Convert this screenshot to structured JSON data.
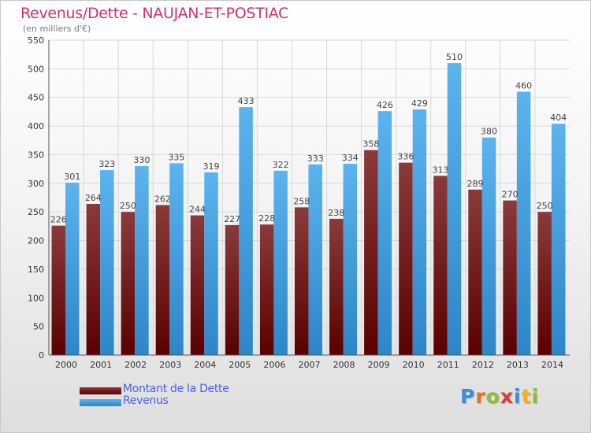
{
  "header": {
    "title": "Revenus/Dette - NAUJAN-ET-POSTIAC",
    "subtitle": "(en milliers d'€)"
  },
  "legend": {
    "items": [
      {
        "label": "Montant de la Dette",
        "color": "#6e1a1a"
      },
      {
        "label": "Revenus",
        "color": "#3f9ee0"
      }
    ]
  },
  "logo": {
    "text": "Proxiti"
  },
  "colors": {
    "dette_top": "#8a3a3a",
    "dette_bottom": "#5a0000",
    "revenus_top": "#5bb4ee",
    "revenus_bottom": "#2c86c8",
    "grid": "#d8d8d8",
    "axis_text": "#333333",
    "label_text": "#444444"
  },
  "chart_data": {
    "type": "bar",
    "title": "Revenus/Dette - NAUJAN-ET-POSTIAC",
    "subtitle": "(en milliers d'€)",
    "categories": [
      "2000",
      "2001",
      "2002",
      "2003",
      "2004",
      "2005",
      "2006",
      "2007",
      "2008",
      "2009",
      "2010",
      "2011",
      "2012",
      "2013",
      "2014"
    ],
    "series": [
      {
        "name": "Montant de la Dette",
        "values": [
          226,
          264,
          250,
          262,
          244,
          227,
          228,
          258,
          238,
          358,
          336,
          313,
          289,
          270,
          250
        ]
      },
      {
        "name": "Revenus",
        "values": [
          301,
          323,
          330,
          335,
          319,
          433,
          322,
          333,
          334,
          426,
          429,
          510,
          380,
          460,
          404
        ]
      }
    ],
    "ylim": [
      0,
      550
    ],
    "yticks": [
      0,
      50,
      100,
      150,
      200,
      250,
      300,
      350,
      400,
      450,
      500,
      550
    ],
    "grid": true,
    "legend_position": "bottom-left"
  }
}
